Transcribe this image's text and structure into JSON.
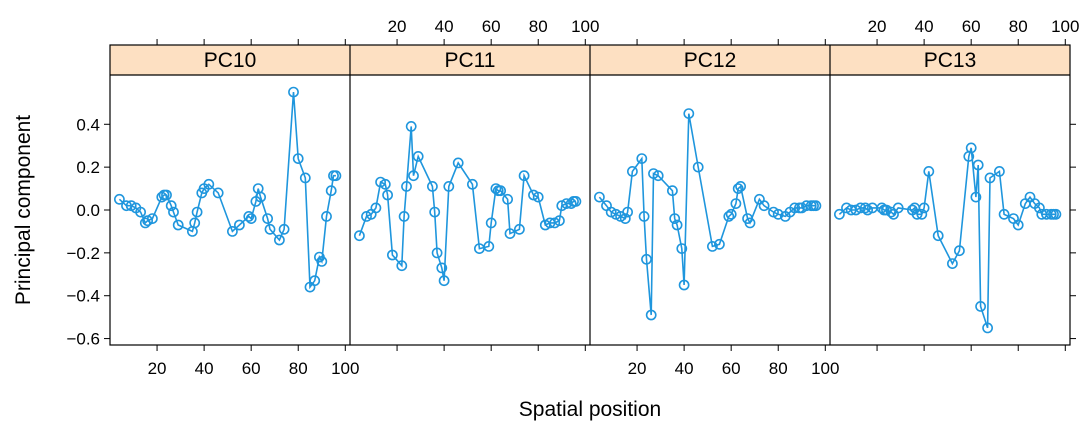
{
  "chart_data": {
    "type": "line",
    "xlabel": "Spatial position",
    "ylabel": "Principal component",
    "xlim": [
      0,
      102
    ],
    "ylim": [
      -0.63,
      0.63
    ],
    "x_ticks": [
      20,
      40,
      60,
      80,
      100
    ],
    "y_ticks": [
      -0.6,
      -0.4,
      -0.2,
      0.0,
      0.2,
      0.4
    ],
    "y_tick_labels": [
      "−0.6",
      "−0.4",
      "−0.2",
      "0.0",
      "0.2",
      "0.4"
    ],
    "x_tick_labels": [
      "20",
      "40",
      "60",
      "80",
      "100"
    ],
    "grid": false,
    "line_color": "#1f96dd",
    "strip_color": "#fde0c2",
    "x": [
      4,
      7,
      9,
      11,
      13,
      15,
      16,
      18,
      22,
      23,
      24,
      26,
      27,
      29,
      35,
      36,
      37,
      39,
      40,
      42,
      46,
      52,
      55,
      59,
      60,
      62,
      63,
      64,
      67,
      68,
      72,
      74,
      78,
      80,
      83,
      85,
      87,
      89,
      90,
      92,
      94,
      95,
      96
    ],
    "panels": [
      {
        "name": "PC10",
        "values": [
          0.05,
          0.02,
          0.02,
          0.01,
          -0.01,
          -0.06,
          -0.05,
          -0.04,
          0.06,
          0.07,
          0.07,
          0.02,
          -0.01,
          -0.07,
          -0.1,
          -0.06,
          -0.01,
          0.08,
          0.1,
          0.12,
          0.08,
          -0.1,
          -0.07,
          -0.03,
          -0.04,
          0.04,
          0.1,
          0.06,
          -0.04,
          -0.09,
          -0.14,
          -0.09,
          0.55,
          0.24,
          0.15,
          -0.36,
          -0.33,
          -0.22,
          -0.24,
          -0.03,
          0.09,
          0.16,
          0.16
        ]
      },
      {
        "name": "PC11",
        "values": [
          -0.12,
          -0.03,
          -0.02,
          0.01,
          0.13,
          0.12,
          0.07,
          -0.21,
          -0.26,
          -0.03,
          0.11,
          0.39,
          0.16,
          0.25,
          0.11,
          -0.01,
          -0.2,
          -0.27,
          -0.33,
          0.11,
          0.22,
          0.12,
          -0.18,
          -0.17,
          -0.06,
          0.1,
          0.09,
          0.09,
          0.05,
          -0.11,
          -0.09,
          0.16,
          0.07,
          0.06,
          -0.07,
          -0.06,
          -0.06,
          -0.05,
          0.02,
          0.03,
          0.03,
          0.04,
          0.04
        ]
      },
      {
        "name": "PC12",
        "values": [
          0.06,
          0.02,
          -0.01,
          -0.02,
          -0.03,
          -0.04,
          -0.01,
          0.18,
          0.24,
          -0.03,
          -0.23,
          -0.49,
          0.17,
          0.16,
          0.09,
          -0.04,
          -0.07,
          -0.18,
          -0.35,
          0.45,
          0.2,
          -0.17,
          -0.16,
          -0.03,
          -0.02,
          0.03,
          0.1,
          0.11,
          -0.04,
          -0.06,
          0.05,
          0.02,
          -0.01,
          -0.02,
          -0.03,
          -0.01,
          0.01,
          0.01,
          0.01,
          0.02,
          0.02,
          0.02,
          0.02
        ]
      },
      {
        "name": "PC13",
        "values": [
          -0.02,
          0.01,
          0.0,
          0.0,
          0.01,
          0.01,
          0.0,
          0.01,
          0.01,
          0.0,
          0.0,
          -0.01,
          -0.02,
          0.01,
          0.0,
          0.01,
          -0.02,
          -0.02,
          0.01,
          0.18,
          -0.12,
          -0.25,
          -0.19,
          0.25,
          0.29,
          0.06,
          0.21,
          -0.45,
          -0.55,
          0.15,
          0.18,
          -0.02,
          -0.04,
          -0.07,
          0.03,
          0.06,
          0.03,
          0.01,
          -0.02,
          -0.02,
          -0.02,
          -0.02,
          -0.02
        ]
      }
    ]
  }
}
